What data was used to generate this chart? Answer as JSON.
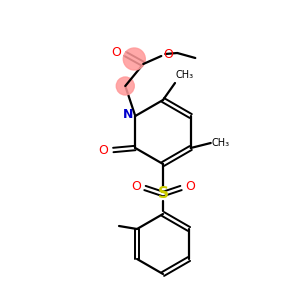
{
  "bg_color": "#ffffff",
  "atom_colors": {
    "O": "#ff0000",
    "N": "#0000cc",
    "S": "#cccc00",
    "C": "#000000"
  },
  "bond_color": "#000000",
  "highlight_color": "#ff9999",
  "figsize": [
    3.0,
    3.0
  ],
  "dpi": 100
}
